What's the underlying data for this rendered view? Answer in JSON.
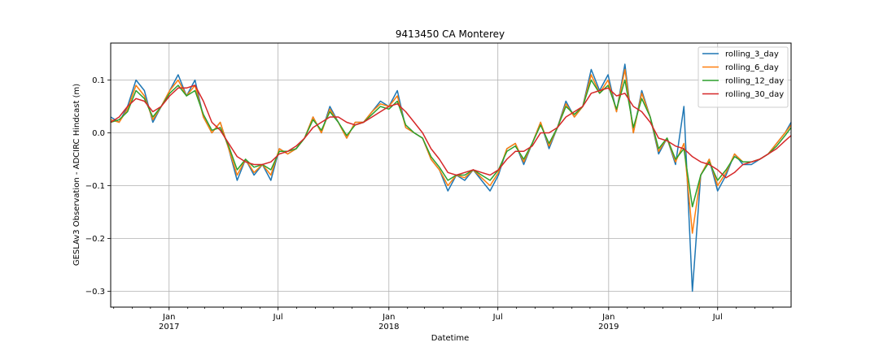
{
  "chart_data": {
    "type": "line",
    "title": "9413450 CA Monterey",
    "xlabel": "Datetime",
    "ylabel": "GESLAv3 Observation - ADCIRC Hindcast (m)",
    "xlim": [
      "2016-09-26",
      "2019-10-31"
    ],
    "ylim": [
      -0.33,
      0.17
    ],
    "grid": true,
    "legend_position": "top-right",
    "xticks": [
      {
        "date": "2017-01-01",
        "label": "Jan",
        "year": "2017"
      },
      {
        "date": "2017-07-01",
        "label": "Jul",
        "year": ""
      },
      {
        "date": "2018-01-01",
        "label": "Jan",
        "year": "2018"
      },
      {
        "date": "2018-07-01",
        "label": "Jul",
        "year": ""
      },
      {
        "date": "2019-01-01",
        "label": "Jan",
        "year": "2019"
      },
      {
        "date": "2019-07-01",
        "label": "Jul",
        "year": ""
      }
    ],
    "yticks": [
      {
        "value": 0.1,
        "label": "0.1"
      },
      {
        "value": 0.0,
        "label": "0.0"
      },
      {
        "value": -0.1,
        "label": "−0.1"
      },
      {
        "value": -0.2,
        "label": "−0.2"
      },
      {
        "value": -0.3,
        "label": "−0.3"
      }
    ],
    "x": [
      "2016-09-26",
      "2016-10-10",
      "2016-10-24",
      "2016-11-07",
      "2016-11-21",
      "2016-12-05",
      "2016-12-19",
      "2017-01-02",
      "2017-01-16",
      "2017-01-30",
      "2017-02-13",
      "2017-02-27",
      "2017-03-13",
      "2017-03-27",
      "2017-04-10",
      "2017-04-24",
      "2017-05-08",
      "2017-05-22",
      "2017-06-05",
      "2017-06-19",
      "2017-07-03",
      "2017-07-17",
      "2017-07-31",
      "2017-08-14",
      "2017-08-28",
      "2017-09-11",
      "2017-09-25",
      "2017-10-09",
      "2017-10-23",
      "2017-11-06",
      "2017-11-20",
      "2017-12-04",
      "2017-12-18",
      "2018-01-01",
      "2018-01-15",
      "2018-01-29",
      "2018-02-12",
      "2018-02-26",
      "2018-03-12",
      "2018-03-26",
      "2018-04-09",
      "2018-04-23",
      "2018-05-07",
      "2018-05-21",
      "2018-06-04",
      "2018-06-18",
      "2018-07-02",
      "2018-07-16",
      "2018-07-30",
      "2018-08-13",
      "2018-08-27",
      "2018-09-10",
      "2018-09-24",
      "2018-10-08",
      "2018-10-22",
      "2018-11-05",
      "2018-11-19",
      "2018-12-03",
      "2018-12-17",
      "2018-12-31",
      "2019-01-14",
      "2019-01-28",
      "2019-02-11",
      "2019-02-25",
      "2019-03-11",
      "2019-03-25",
      "2019-04-08",
      "2019-04-22",
      "2019-05-06",
      "2019-05-20",
      "2019-06-03",
      "2019-06-17",
      "2019-07-01",
      "2019-07-15",
      "2019-07-29",
      "2019-08-12",
      "2019-08-26",
      "2019-09-09",
      "2019-09-23",
      "2019-10-07",
      "2019-10-21",
      "2019-10-31"
    ],
    "series": [
      {
        "name": "rolling_3_day",
        "color": "#1f77b4",
        "values": [
          0.03,
          0.02,
          0.05,
          0.1,
          0.08,
          0.02,
          0.05,
          0.08,
          0.11,
          0.07,
          0.1,
          0.03,
          0.0,
          0.02,
          -0.03,
          -0.09,
          -0.05,
          -0.08,
          -0.06,
          -0.09,
          -0.03,
          -0.04,
          -0.03,
          -0.01,
          0.03,
          0.0,
          0.05,
          0.02,
          -0.01,
          0.02,
          0.02,
          0.04,
          0.06,
          0.05,
          0.08,
          0.01,
          0.0,
          -0.01,
          -0.05,
          -0.07,
          -0.11,
          -0.08,
          -0.09,
          -0.07,
          -0.09,
          -0.11,
          -0.08,
          -0.03,
          -0.02,
          -0.06,
          -0.02,
          0.02,
          -0.03,
          0.01,
          0.06,
          0.03,
          0.05,
          0.12,
          0.08,
          0.11,
          0.04,
          0.13,
          0.0,
          0.08,
          0.03,
          -0.04,
          -0.01,
          -0.06,
          0.05,
          -0.3,
          -0.08,
          -0.05,
          -0.11,
          -0.08,
          -0.04,
          -0.06,
          -0.06,
          -0.05,
          -0.04,
          -0.02,
          0.0,
          0.02
        ]
      },
      {
        "name": "rolling_6_day",
        "color": "#ff7f0e",
        "values": [
          0.025,
          0.02,
          0.045,
          0.09,
          0.07,
          0.025,
          0.05,
          0.08,
          0.1,
          0.07,
          0.09,
          0.03,
          0.0,
          0.02,
          -0.03,
          -0.08,
          -0.05,
          -0.075,
          -0.06,
          -0.08,
          -0.03,
          -0.04,
          -0.03,
          -0.01,
          0.03,
          0.0,
          0.045,
          0.02,
          -0.01,
          0.02,
          0.02,
          0.04,
          0.055,
          0.05,
          0.07,
          0.01,
          0.0,
          -0.01,
          -0.05,
          -0.07,
          -0.1,
          -0.08,
          -0.085,
          -0.07,
          -0.085,
          -0.1,
          -0.075,
          -0.03,
          -0.02,
          -0.055,
          -0.02,
          0.02,
          -0.025,
          0.01,
          0.055,
          0.03,
          0.05,
          0.11,
          0.075,
          0.1,
          0.04,
          0.12,
          0.0,
          0.075,
          0.03,
          -0.035,
          -0.01,
          -0.055,
          -0.02,
          -0.19,
          -0.08,
          -0.05,
          -0.1,
          -0.075,
          -0.04,
          -0.055,
          -0.055,
          -0.05,
          -0.04,
          -0.02,
          0.0,
          0.015
        ]
      },
      {
        "name": "rolling_12_day",
        "color": "#2ca02c",
        "values": [
          0.02,
          0.025,
          0.04,
          0.08,
          0.065,
          0.03,
          0.05,
          0.075,
          0.09,
          0.07,
          0.08,
          0.035,
          0.005,
          0.01,
          -0.025,
          -0.07,
          -0.05,
          -0.065,
          -0.06,
          -0.07,
          -0.035,
          -0.035,
          -0.03,
          -0.01,
          0.025,
          0.005,
          0.04,
          0.02,
          -0.005,
          0.015,
          0.02,
          0.035,
          0.05,
          0.045,
          0.06,
          0.015,
          0.0,
          -0.01,
          -0.045,
          -0.065,
          -0.09,
          -0.08,
          -0.08,
          -0.07,
          -0.08,
          -0.09,
          -0.07,
          -0.035,
          -0.025,
          -0.05,
          -0.02,
          0.015,
          -0.02,
          0.01,
          0.05,
          0.035,
          0.05,
          0.1,
          0.075,
          0.09,
          0.045,
          0.1,
          0.01,
          0.065,
          0.03,
          -0.03,
          -0.01,
          -0.05,
          -0.03,
          -0.14,
          -0.08,
          -0.055,
          -0.09,
          -0.07,
          -0.045,
          -0.055,
          -0.055,
          -0.05,
          -0.04,
          -0.025,
          -0.005,
          0.01
        ]
      },
      {
        "name": "rolling_30_day",
        "color": "#d62728",
        "values": [
          0.02,
          0.03,
          0.05,
          0.065,
          0.06,
          0.04,
          0.05,
          0.07,
          0.085,
          0.085,
          0.09,
          0.06,
          0.02,
          0.005,
          -0.02,
          -0.045,
          -0.055,
          -0.06,
          -0.06,
          -0.055,
          -0.04,
          -0.035,
          -0.025,
          -0.01,
          0.01,
          0.02,
          0.03,
          0.03,
          0.02,
          0.015,
          0.02,
          0.03,
          0.04,
          0.05,
          0.055,
          0.04,
          0.02,
          0.0,
          -0.03,
          -0.05,
          -0.075,
          -0.08,
          -0.075,
          -0.07,
          -0.075,
          -0.08,
          -0.07,
          -0.05,
          -0.035,
          -0.035,
          -0.025,
          0.0,
          0.0,
          0.01,
          0.03,
          0.04,
          0.05,
          0.075,
          0.08,
          0.085,
          0.07,
          0.075,
          0.05,
          0.04,
          0.02,
          -0.01,
          -0.015,
          -0.025,
          -0.03,
          -0.045,
          -0.055,
          -0.06,
          -0.07,
          -0.085,
          -0.075,
          -0.06,
          -0.055,
          -0.05,
          -0.04,
          -0.03,
          -0.015,
          -0.005
        ]
      }
    ]
  }
}
